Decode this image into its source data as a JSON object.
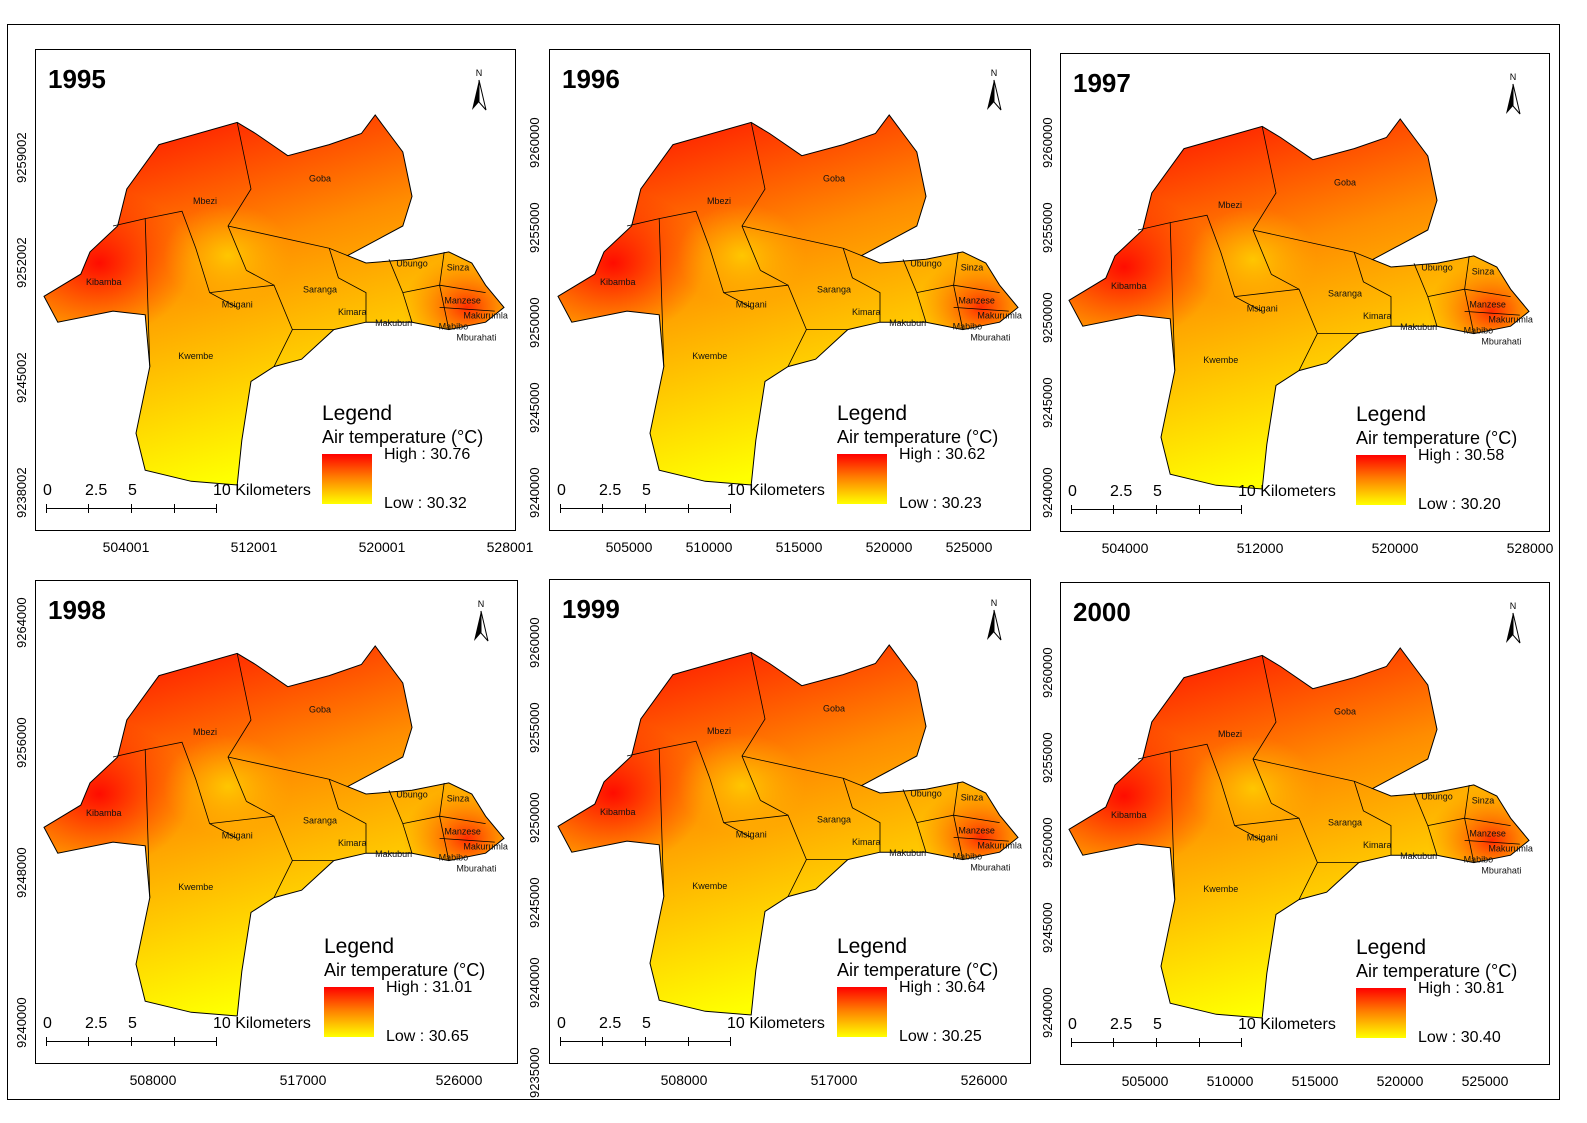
{
  "ward_names": [
    "Kibamba",
    "Mbezi",
    "Goba",
    "Msigani",
    "Kwembe",
    "Saranga",
    "Kimara",
    "Ubungo",
    "Sinza",
    "Manzese",
    "Makuburi",
    "Makurumla",
    "Mabibo",
    "Mburahati"
  ],
  "unit_label": "Air temperature (°C)",
  "legend_title": "Legend",
  "scale": {
    "labels": [
      "0",
      "2.5",
      "5",
      "10 Kilometers"
    ]
  },
  "colors": {
    "high": "#ff0000",
    "mid": "#ff8c00",
    "low": "#ffff00"
  },
  "panels": [
    {
      "year": "1995",
      "high": "High : 30.76",
      "low": "Low : 30.32",
      "x_ticks": [
        "504001",
        "512001",
        "520001",
        "528001"
      ],
      "y_ticks": [
        "9259002",
        "9252002",
        "9245002",
        "9238002"
      ]
    },
    {
      "year": "1996",
      "high": "High : 30.62",
      "low": "Low : 30.23",
      "x_ticks": [
        "505000",
        "510000",
        "515000",
        "520000",
        "525000"
      ],
      "y_ticks": [
        "9260000",
        "9255000",
        "9250000",
        "9245000",
        "9240000"
      ]
    },
    {
      "year": "1997",
      "high": "High : 30.58",
      "low": "Low : 30.20",
      "x_ticks": [
        "504000",
        "512000",
        "520000",
        "528000"
      ],
      "y_ticks": [
        "9260000",
        "9255000",
        "9250000",
        "9245000",
        "9240000"
      ]
    },
    {
      "year": "1998",
      "high": "High : 31.01",
      "low": "Low : 30.65",
      "x_ticks": [
        "508000",
        "517000",
        "526000"
      ],
      "y_ticks": [
        "9264000",
        "9256000",
        "9248000",
        "9240000"
      ]
    },
    {
      "year": "1999",
      "high": "High : 30.64",
      "low": "Low : 30.25",
      "x_ticks": [
        "508000",
        "517000",
        "526000"
      ],
      "y_ticks": [
        "9260000",
        "9255000",
        "9250000",
        "9245000",
        "9240000",
        "9235000"
      ]
    },
    {
      "year": "2000",
      "high": "High : 30.81",
      "low": "Low : 30.40",
      "x_ticks": [
        "505000",
        "510000",
        "515000",
        "520000",
        "525000"
      ],
      "y_ticks": [
        "9260000",
        "9255000",
        "9250000",
        "9245000",
        "9240000"
      ]
    }
  ]
}
